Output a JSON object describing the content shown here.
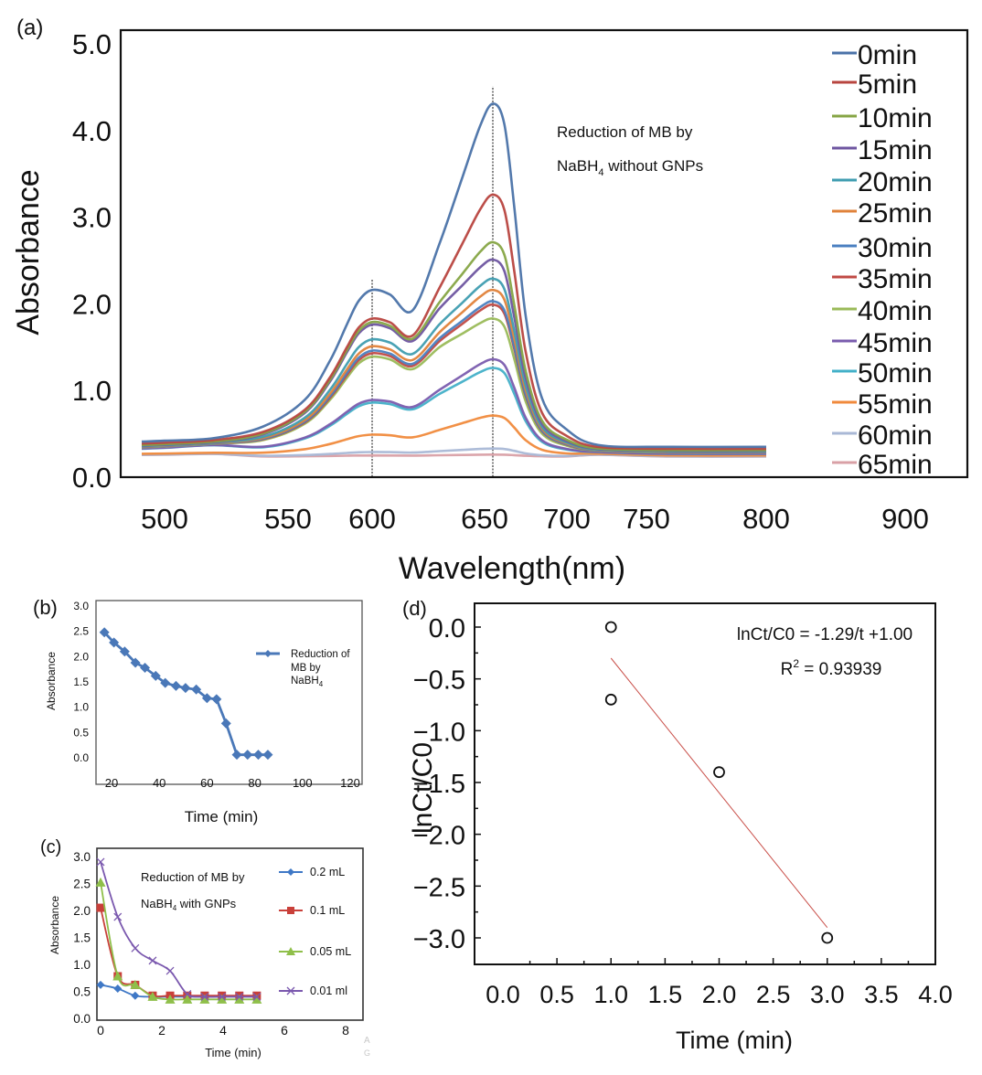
{
  "figure": {
    "faint_watermark": [
      "A",
      "G"
    ]
  },
  "chart_data": [
    {
      "id": "a",
      "panel_label": "(a)",
      "type": "line",
      "title": "",
      "xlabel": "Wavelength(nm)",
      "ylabel": "Absorbance",
      "xlim": [
        490,
        950
      ],
      "ylim": [
        0.0,
        5.0
      ],
      "x_ticks": [
        500,
        550,
        600,
        650,
        700,
        750,
        800,
        900
      ],
      "x_tick_labels": [
        "500",
        "550",
        "600",
        "650",
        "700",
        "750",
        "800",
        "900"
      ],
      "y_ticks": [
        0.0,
        1.0,
        2.0,
        3.0,
        4.0,
        5.0
      ],
      "y_tick_labels": [
        "0.0",
        "1.0",
        "2.0",
        "3.0",
        "4.0",
        "5.0"
      ],
      "grid": false,
      "legend_position": "right",
      "annotation": {
        "line1": "Reduction of MB by",
        "line2_prefix": "NaBH",
        "line2_sub": "4",
        "line2_suffix": " without GNPs"
      },
      "reference_lines_nm": [
        600,
        655
      ],
      "x": [
        490,
        500,
        520,
        540,
        560,
        575,
        585,
        592,
        600,
        608,
        618,
        630,
        640,
        648,
        655,
        662,
        668,
        675,
        685,
        700,
        720,
        760,
        800
      ],
      "series": [
        {
          "name": "0min",
          "color": "#4a72a8",
          "peak_600": 2.15,
          "peak_655": 4.3
        },
        {
          "name": "5min",
          "color": "#b8453f",
          "peak_600": 1.82,
          "peak_655": 3.25
        },
        {
          "name": "10min",
          "color": "#86a544",
          "peak_600": 1.78,
          "peak_655": 2.7
        },
        {
          "name": "15min",
          "color": "#6e55a0",
          "peak_600": 1.75,
          "peak_655": 2.5
        },
        {
          "name": "20min",
          "color": "#3f9db0",
          "peak_600": 1.58,
          "peak_655": 2.28
        },
        {
          "name": "25min",
          "color": "#e0823a",
          "peak_600": 1.5,
          "peak_655": 2.15
        },
        {
          "name": "30min",
          "color": "#4a7fc0",
          "peak_600": 1.45,
          "peak_655": 2.02
        },
        {
          "name": "35min",
          "color": "#c04a44",
          "peak_600": 1.42,
          "peak_655": 1.98
        },
        {
          "name": "40min",
          "color": "#9aba58",
          "peak_600": 1.38,
          "peak_655": 1.82
        },
        {
          "name": "45min",
          "color": "#7a5cae",
          "peak_600": 0.88,
          "peak_655": 1.35
        },
        {
          "name": "50min",
          "color": "#43b0c8",
          "peak_600": 0.85,
          "peak_655": 1.25
        },
        {
          "name": "55min",
          "color": "#f08a3c",
          "peak_600": 0.48,
          "peak_655": 0.7
        },
        {
          "name": "60min",
          "color": "#a9b8d6",
          "peak_600": 0.28,
          "peak_655": 0.32
        },
        {
          "name": "65min",
          "color": "#d9a0a6",
          "peak_600": 0.24,
          "peak_655": 0.25
        }
      ]
    },
    {
      "id": "b",
      "panel_label": "(b)",
      "type": "line",
      "title": "",
      "xlabel": "Time (min)",
      "ylabel": "Absorbance",
      "xlim": [
        15,
        122
      ],
      "ylim": [
        -0.2,
        3.0
      ],
      "x_ticks": [
        20,
        40,
        60,
        80,
        100,
        120
      ],
      "x_tick_labels": [
        "20",
        "40",
        "60",
        "80",
        "100",
        "120"
      ],
      "y_ticks": [
        0.0,
        0.5,
        1.0,
        1.5,
        2.0,
        2.5,
        3.0
      ],
      "y_tick_labels": [
        "0.0",
        "0.5",
        "1.0",
        "1.5",
        "2.0",
        "2.5",
        "3.0"
      ],
      "grid": false,
      "legend_position": "right",
      "series": [
        {
          "name": "Reduction of MB by NaBH4",
          "legend_lines": [
            "Reduction of",
            "MB by"
          ],
          "legend_last_prefix": " NaBH",
          "legend_last_sub": "4",
          "color": "#4a78b8",
          "marker": "diamond",
          "x": [
            17,
            21,
            25.5,
            30,
            34,
            38.5,
            42.5,
            47,
            51,
            55.5,
            60,
            64,
            68,
            72.5,
            77,
            81.5,
            85.5
          ],
          "y": [
            2.48,
            2.28,
            2.1,
            1.88,
            1.78,
            1.62,
            1.48,
            1.42,
            1.38,
            1.35,
            1.18,
            1.16,
            0.68,
            0.06,
            0.06,
            0.06,
            0.06
          ]
        }
      ]
    },
    {
      "id": "c",
      "panel_label": "(c)",
      "type": "line",
      "title": "",
      "xlabel": "Time (min)",
      "ylabel": "Absorbance",
      "xlim": [
        -0.2,
        8.6
      ],
      "ylim": [
        0.0,
        3.1
      ],
      "x_ticks": [
        0,
        2,
        4,
        6,
        8
      ],
      "x_tick_labels": [
        "0",
        "2",
        "4",
        "6",
        "8"
      ],
      "y_ticks": [
        0.0,
        0.5,
        1.0,
        1.5,
        2.0,
        2.5,
        3.0
      ],
      "y_tick_labels": [
        "0.0",
        "0.5",
        "1.0",
        "1.5",
        "2.0",
        "2.5",
        "3.0"
      ],
      "grid": false,
      "legend_position": "right",
      "annotation": {
        "line1": "Reduction of MB by",
        "line2_prefix": "NaBH",
        "line2_sub": "4",
        "line2_suffix": " with GNPs"
      },
      "series": [
        {
          "name": "0.2 mL",
          "color": "#3f78c6",
          "marker": "diamond",
          "x": [
            0,
            0.56,
            1.13,
            1.7,
            2.27,
            2.83,
            3.4,
            3.96,
            4.53,
            5.1
          ],
          "y": [
            0.62,
            0.55,
            0.42,
            0.4,
            0.4,
            0.4,
            0.4,
            0.4,
            0.4,
            0.4
          ]
        },
        {
          "name": "0.1 mL",
          "color": "#c9403a",
          "marker": "square",
          "x": [
            0,
            0.56,
            1.13,
            1.7,
            2.27,
            2.83,
            3.4,
            3.96,
            4.53,
            5.1
          ],
          "y": [
            2.05,
            0.78,
            0.62,
            0.42,
            0.42,
            0.42,
            0.42,
            0.42,
            0.42,
            0.42
          ]
        },
        {
          "name": "0.05 mL",
          "color": "#8fbf4a",
          "marker": "triangle",
          "x": [
            0,
            0.56,
            1.13,
            1.7,
            2.27,
            2.83,
            3.4,
            3.96,
            4.53,
            5.1
          ],
          "y": [
            2.52,
            0.78,
            0.62,
            0.4,
            0.35,
            0.35,
            0.35,
            0.35,
            0.35,
            0.35
          ]
        },
        {
          "name": "0.01 ml",
          "color": "#7a58ae",
          "marker": "x",
          "x": [
            0,
            0.56,
            1.13,
            1.7,
            2.27,
            2.83,
            3.4,
            3.96,
            4.53,
            5.1
          ],
          "y": [
            2.9,
            1.88,
            1.3,
            1.07,
            0.88,
            0.45,
            0.4,
            0.4,
            0.4,
            0.4
          ]
        }
      ]
    },
    {
      "id": "d",
      "panel_label": "(d)",
      "type": "scatter",
      "title": "",
      "xlabel": "Time (min)",
      "ylabel": "lnCt/C0",
      "xlim": [
        -0.35,
        4.0
      ],
      "ylim": [
        -3.25,
        0.25
      ],
      "x_ticks": [
        0.0,
        0.5,
        1.0,
        1.5,
        2.0,
        2.5,
        3.0,
        3.5,
        4.0
      ],
      "x_tick_labels": [
        "0.0",
        "0.5",
        "1.0",
        "1.5",
        "2.0",
        "2.5",
        "3.0",
        "3.5",
        "4.0"
      ],
      "y_ticks": [
        0.0,
        -0.5,
        -1.0,
        -1.5,
        -2.0,
        -2.5,
        -3.0
      ],
      "y_tick_labels": [
        "0.0",
        "−0.5",
        "−1.0",
        "−1.5",
        "−2.0",
        "−2.5",
        "−3.0"
      ],
      "grid": false,
      "equation": "lnCt/C0 = -1.29/t +1.00",
      "r2_prefix": "R",
      "r2_sup": "2",
      "r2_suffix": " = 0.93939",
      "points": {
        "x": [
          1.0,
          1.0,
          2.0,
          3.0
        ],
        "y": [
          0.0,
          -0.7,
          -1.4,
          -3.0
        ],
        "marker": "open-circle",
        "color": "#111111"
      },
      "fit_line": {
        "x": [
          1.0,
          3.0
        ],
        "y": [
          -0.3,
          -2.9
        ],
        "color": "#c9504a"
      }
    }
  ]
}
